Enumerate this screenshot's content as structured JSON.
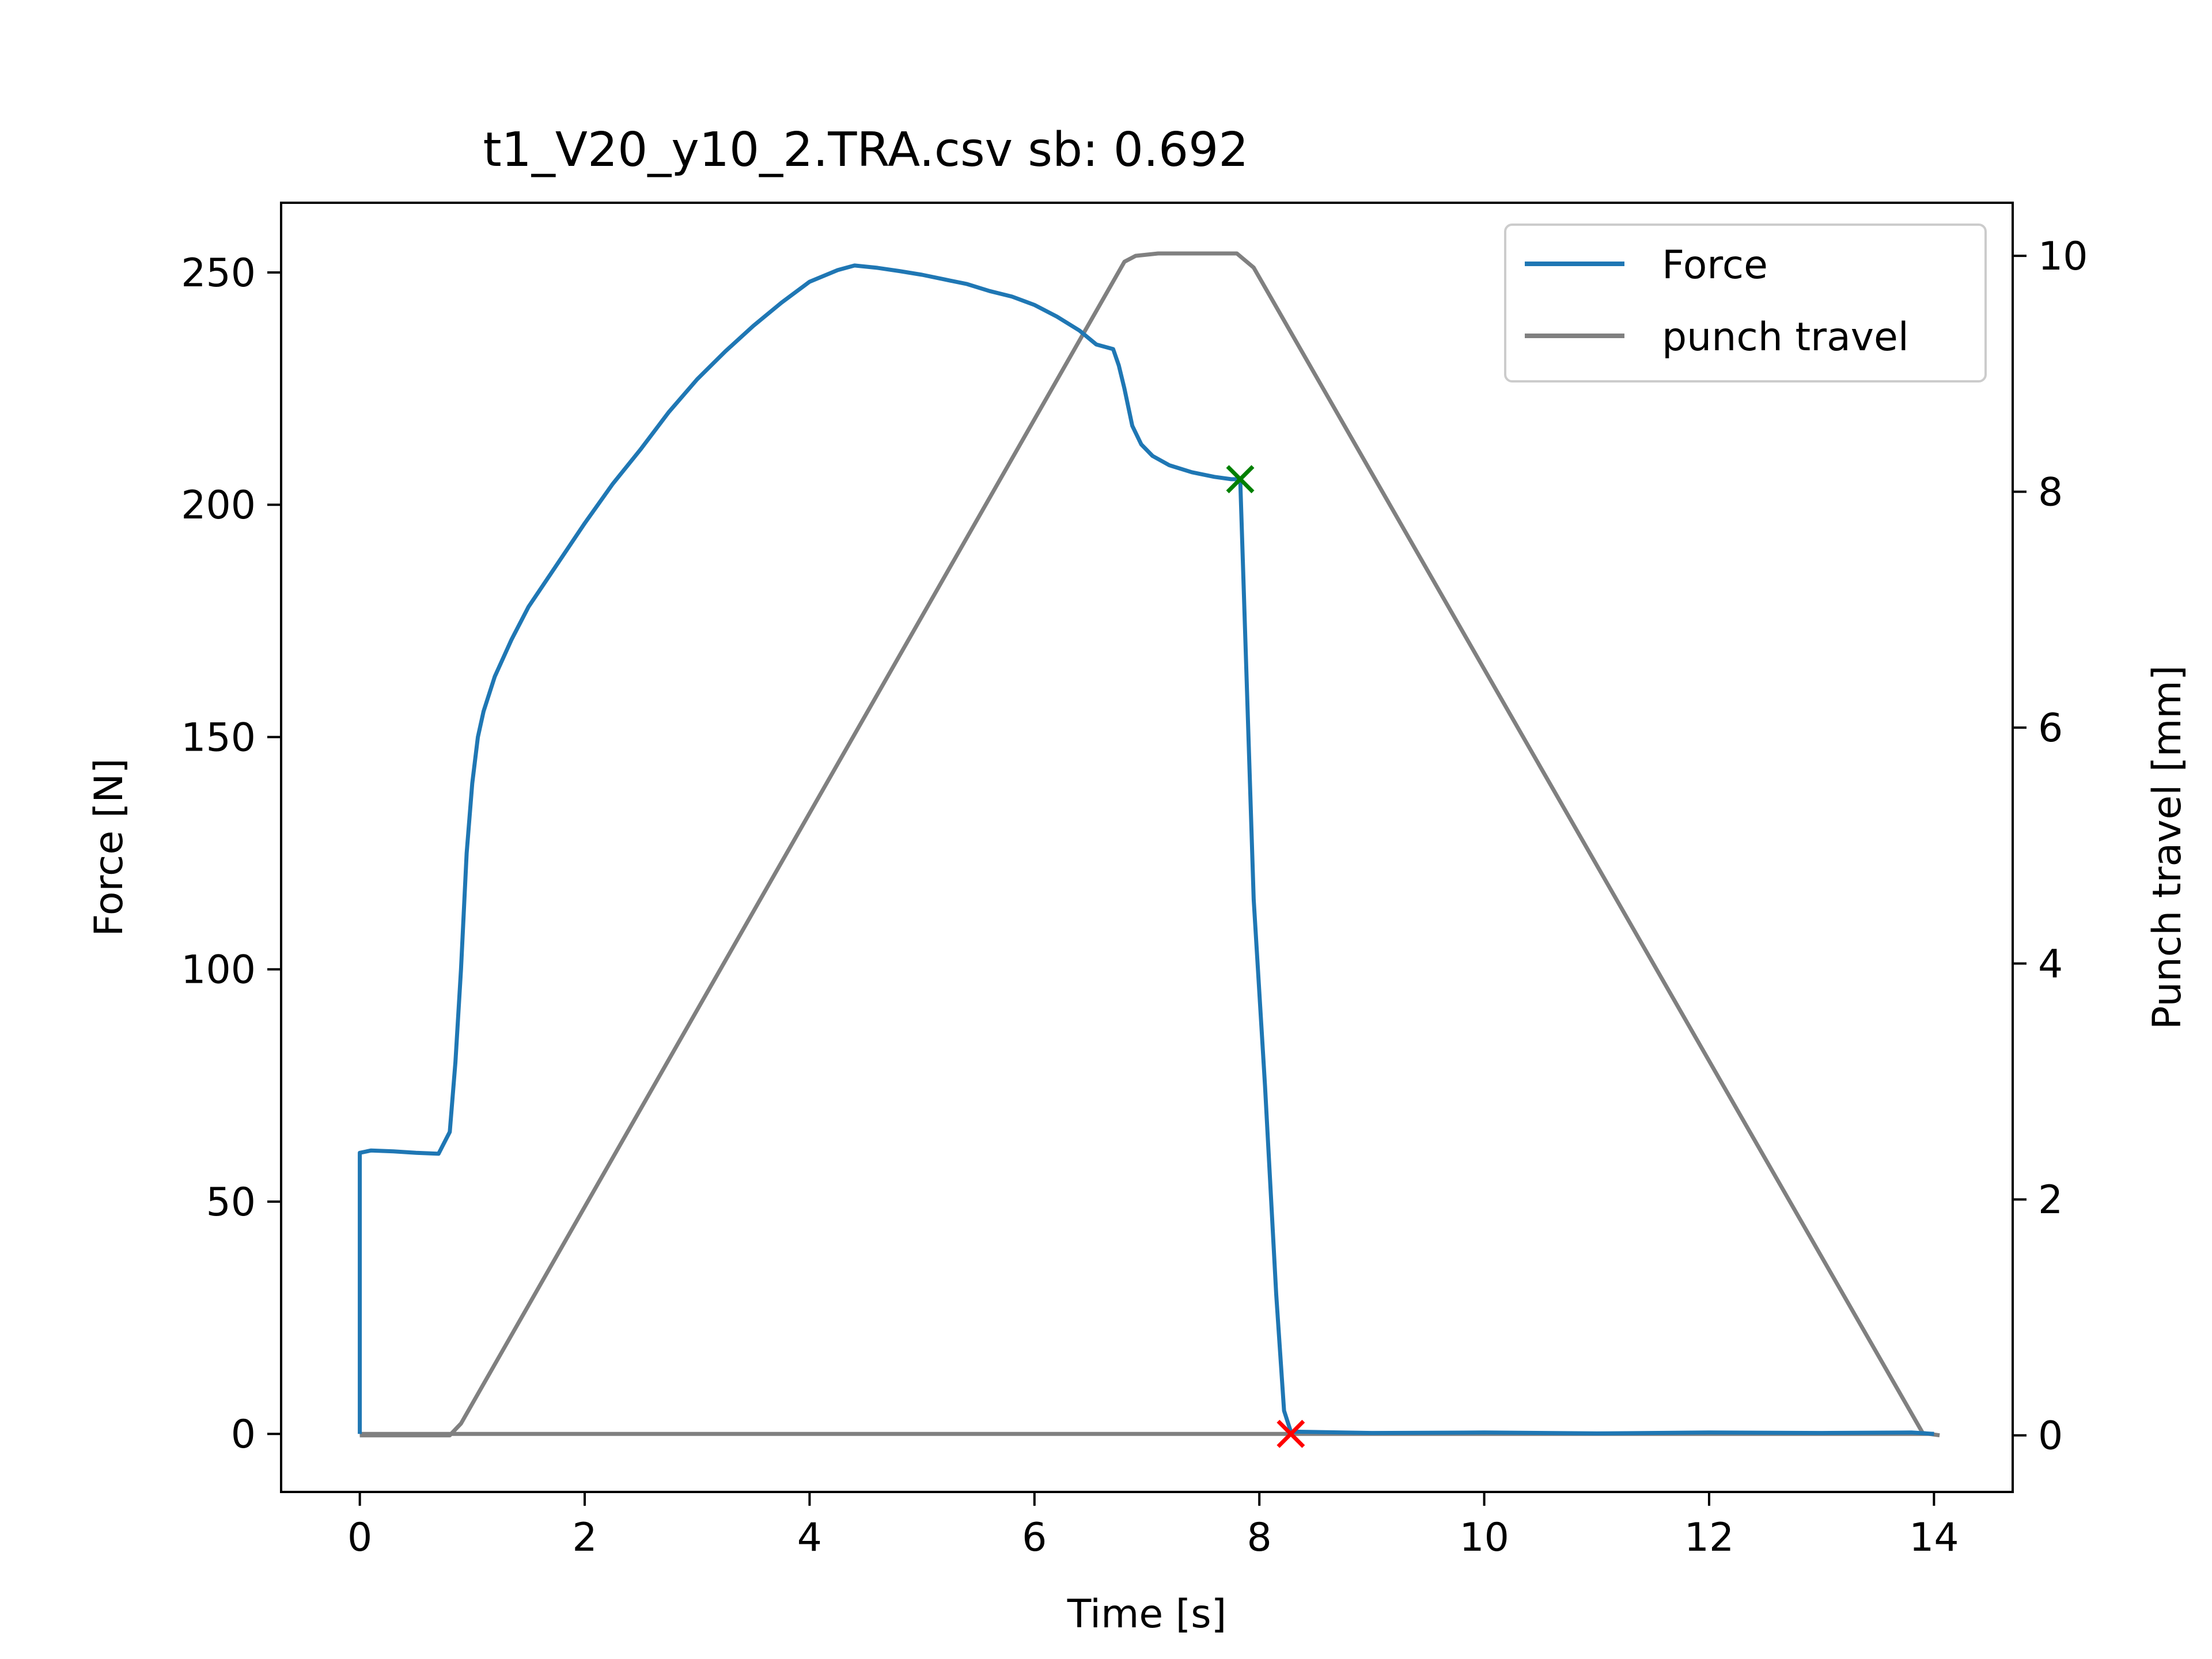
{
  "chart_data": {
    "type": "line",
    "title": "t1_V20_y10_2.TRA.csv sb: 0.692",
    "xlabel": "Time [s]",
    "ylabel": "Force [N]",
    "y2label": "Punch travel [mm]",
    "xlim": [
      -0.7,
      14.7
    ],
    "ylim": [
      -12.5,
      265
    ],
    "y2lim": [
      -0.48,
      10.45
    ],
    "xticks": [
      "0",
      "2",
      "4",
      "6",
      "8",
      "10",
      "12",
      "14"
    ],
    "yticks": [
      "0",
      "50",
      "100",
      "150",
      "200",
      "250"
    ],
    "y2ticks": [
      "0",
      "2",
      "4",
      "6",
      "8",
      "10"
    ],
    "grid": false,
    "legend": "top-right",
    "series": [
      {
        "name": "Force",
        "axis": "left",
        "color": "#1f77b4",
        "points": [
          [
            0.0,
            0.0
          ],
          [
            0.0,
            60.5
          ],
          [
            0.1,
            61.0
          ],
          [
            0.3,
            60.8
          ],
          [
            0.5,
            60.5
          ],
          [
            0.7,
            60.3
          ],
          [
            0.8,
            65.0
          ],
          [
            0.85,
            80.0
          ],
          [
            0.9,
            100.0
          ],
          [
            0.95,
            125.0
          ],
          [
            1.0,
            140.0
          ],
          [
            1.05,
            150.0
          ],
          [
            1.1,
            155.5
          ],
          [
            1.2,
            163.0
          ],
          [
            1.35,
            171.0
          ],
          [
            1.5,
            178.0
          ],
          [
            1.75,
            187.0
          ],
          [
            2.0,
            196.0
          ],
          [
            2.25,
            204.5
          ],
          [
            2.5,
            212.0
          ],
          [
            2.75,
            220.0
          ],
          [
            3.0,
            227.0
          ],
          [
            3.25,
            233.0
          ],
          [
            3.5,
            238.5
          ],
          [
            3.75,
            243.5
          ],
          [
            4.0,
            248.0
          ],
          [
            4.25,
            250.5
          ],
          [
            4.4,
            251.5
          ],
          [
            4.6,
            251.0
          ],
          [
            4.8,
            250.3
          ],
          [
            5.0,
            249.5
          ],
          [
            5.2,
            248.5
          ],
          [
            5.4,
            247.5
          ],
          [
            5.6,
            246.0
          ],
          [
            5.8,
            244.8
          ],
          [
            6.0,
            243.0
          ],
          [
            6.2,
            240.5
          ],
          [
            6.4,
            237.5
          ],
          [
            6.55,
            234.5
          ],
          [
            6.7,
            233.5
          ],
          [
            6.75,
            230.0
          ],
          [
            6.8,
            225.0
          ],
          [
            6.87,
            217.0
          ],
          [
            6.95,
            213.0
          ],
          [
            7.05,
            210.5
          ],
          [
            7.2,
            208.5
          ],
          [
            7.4,
            207.0
          ],
          [
            7.6,
            206.0
          ],
          [
            7.75,
            205.5
          ],
          [
            7.83,
            205.5
          ],
          [
            7.95,
            115.0
          ],
          [
            8.05,
            75.0
          ],
          [
            8.15,
            30.0
          ],
          [
            8.22,
            5.0
          ],
          [
            8.28,
            0.5
          ],
          [
            9.0,
            0.2
          ],
          [
            10.0,
            0.3
          ],
          [
            11.0,
            0.1
          ],
          [
            12.0,
            0.3
          ],
          [
            13.0,
            0.2
          ],
          [
            13.8,
            0.3
          ],
          [
            14.0,
            0.0
          ]
        ]
      },
      {
        "name": "punch travel",
        "axis": "right",
        "color": "#808080",
        "points": [
          [
            0.0,
            0.0
          ],
          [
            0.8,
            0.0
          ],
          [
            0.9,
            0.1
          ],
          [
            6.8,
            9.95
          ],
          [
            6.9,
            10.0
          ],
          [
            7.1,
            10.02
          ],
          [
            7.8,
            10.02
          ],
          [
            7.95,
            9.9
          ],
          [
            13.9,
            0.02
          ],
          [
            14.05,
            0.0
          ]
        ]
      },
      {
        "name": "",
        "axis": "left",
        "color": "#808080",
        "points": [
          [
            0.0,
            0.0
          ],
          [
            14.0,
            0.0
          ]
        ]
      }
    ],
    "markers": [
      {
        "x": 7.83,
        "y": 205.5,
        "symbol": "x",
        "color": "#008000"
      },
      {
        "x": 8.28,
        "y": 0.0,
        "symbol": "x",
        "color": "#ff0000"
      }
    ]
  }
}
